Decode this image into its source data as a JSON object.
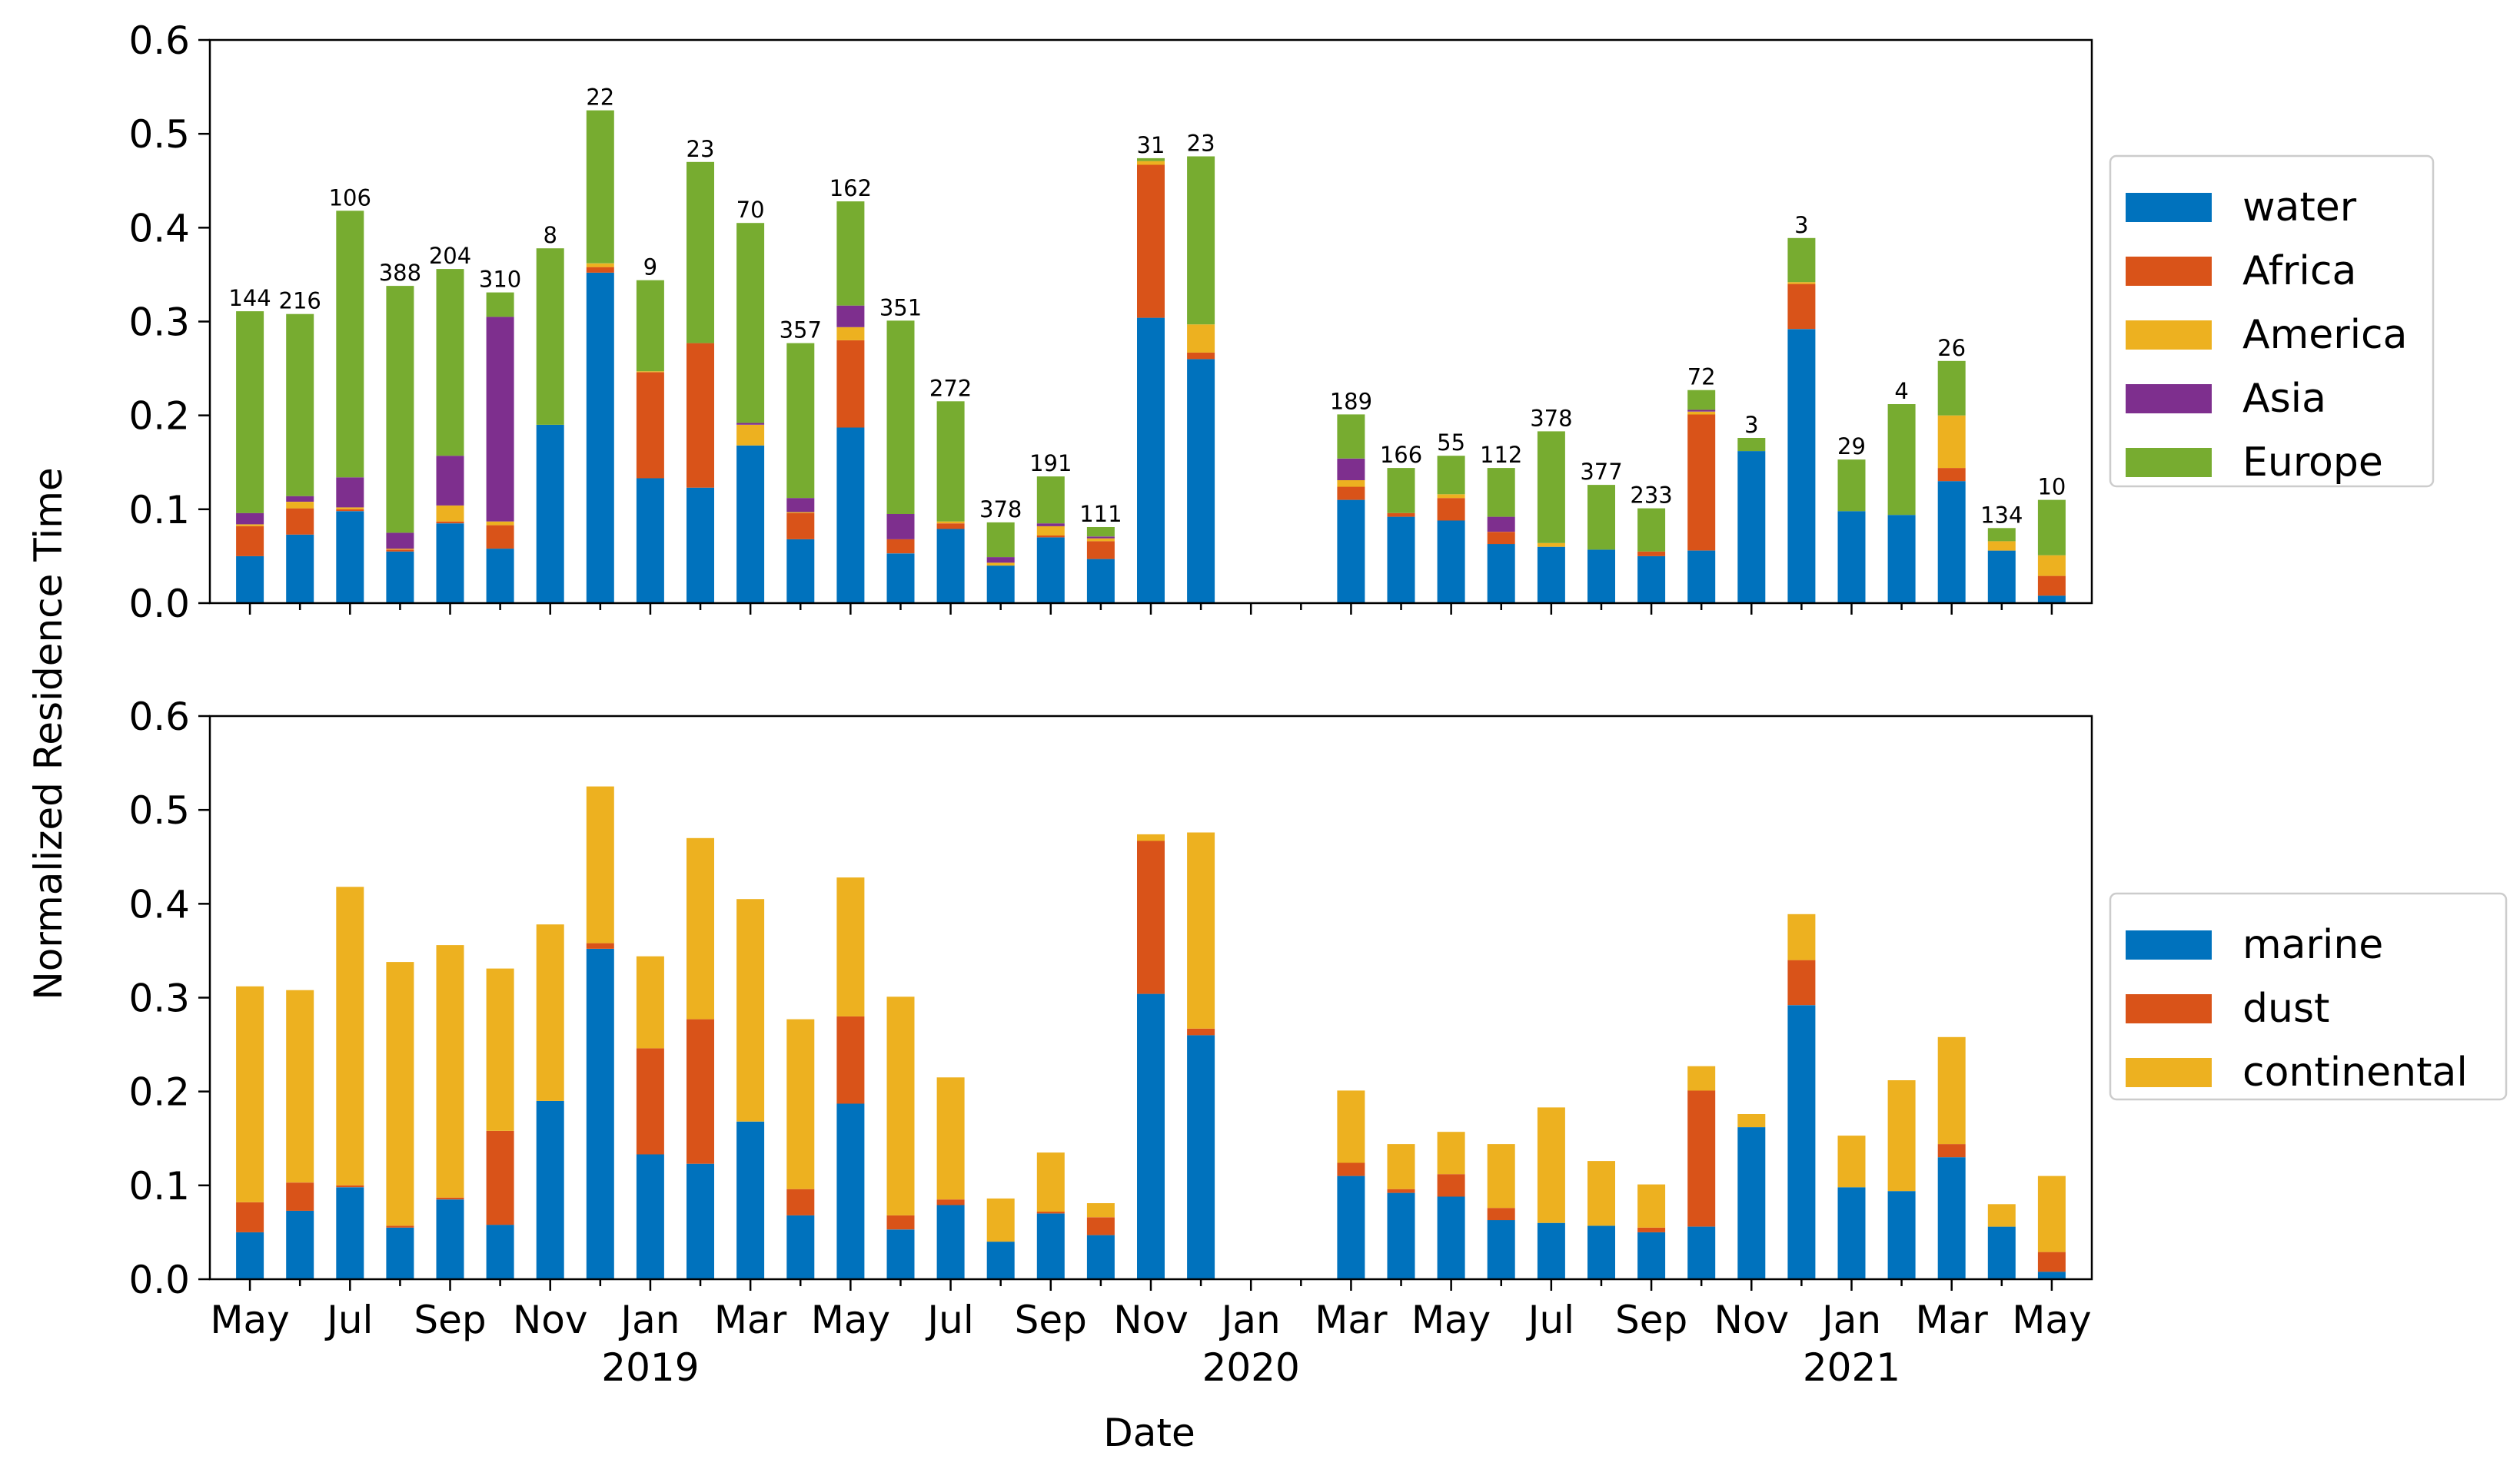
{
  "colors": {
    "water": "#0072BD",
    "Africa": "#D95319",
    "America": "#EDB120",
    "Asia": "#7E2F8E",
    "Europe": "#77AC30",
    "marine": "#0072BD",
    "dust": "#D95319",
    "continental": "#EDB120"
  },
  "chart_data": [
    {
      "type": "bar",
      "stacked": true,
      "title": "",
      "ylabel": "Normalized Residence Time",
      "ylim": [
        0,
        0.6
      ],
      "yticks": [
        "0.0",
        "0.1",
        "0.2",
        "0.3",
        "0.4",
        "0.5",
        "0.6"
      ],
      "legend_position": "right",
      "categories": [
        "2018-05",
        "2018-06",
        "2018-07",
        "2018-08",
        "2018-09",
        "2018-10",
        "2018-11",
        "2018-12",
        "2019-01",
        "2019-02",
        "2019-03",
        "2019-04",
        "2019-05",
        "2019-06",
        "2019-07",
        "2019-08",
        "2019-09",
        "2019-10",
        "2019-11",
        "2019-12",
        "2020-01",
        "2020-02",
        "2020-03",
        "2020-04",
        "2020-05",
        "2020-06",
        "2020-07",
        "2020-08",
        "2020-09",
        "2020-10",
        "2020-11",
        "2020-12",
        "2021-01",
        "2021-02",
        "2021-03",
        "2021-04",
        "2021-05"
      ],
      "counts": [
        "144",
        "216",
        "106",
        "388",
        "204",
        "310",
        "8",
        "22",
        "9",
        "23",
        "70",
        "357",
        "162",
        "351",
        "272",
        "378",
        "191",
        "111",
        "31",
        "23",
        "",
        "",
        "189",
        "166",
        "55",
        "112",
        "378",
        "377",
        "233",
        "72",
        "3",
        "3",
        "29",
        "4",
        "26",
        "134",
        "10"
      ],
      "series": [
        {
          "name": "water",
          "values": [
            0.05,
            0.073,
            0.098,
            0.055,
            0.085,
            0.058,
            0.19,
            0.352,
            0.133,
            0.123,
            0.168,
            0.068,
            0.187,
            0.053,
            0.079,
            0.04,
            0.07,
            0.047,
            0.304,
            0.26,
            0,
            0,
            0.11,
            0.092,
            0.088,
            0.063,
            0.06,
            0.057,
            0.05,
            0.056,
            0.162,
            0.292,
            0.098,
            0.094,
            0.13,
            0.056,
            0.008
          ]
        },
        {
          "name": "Africa",
          "values": [
            0.032,
            0.028,
            0.002,
            0.002,
            0.002,
            0.025,
            0,
            0.006,
            0.113,
            0.154,
            0,
            0.028,
            0.093,
            0.015,
            0.006,
            0,
            0.002,
            0.019,
            0.163,
            0.007,
            0,
            0,
            0.014,
            0.004,
            0.024,
            0.013,
            0,
            0,
            0.005,
            0.145,
            0,
            0.048,
            0,
            0,
            0.014,
            0,
            0.021
          ]
        },
        {
          "name": "America",
          "values": [
            0.002,
            0.007,
            0.002,
            0.001,
            0.017,
            0.004,
            0,
            0.004,
            0.001,
            0,
            0.022,
            0.001,
            0.014,
            0,
            0.002,
            0.003,
            0.01,
            0.003,
            0.004,
            0.03,
            0,
            0,
            0.007,
            0,
            0.004,
            0,
            0.004,
            0,
            0,
            0.003,
            0,
            0.002,
            0,
            0,
            0.056,
            0.01,
            0.022
          ]
        },
        {
          "name": "Asia",
          "values": [
            0.012,
            0.006,
            0.032,
            0.017,
            0.053,
            0.218,
            0,
            0,
            0,
            0,
            0.002,
            0.015,
            0.023,
            0.027,
            0,
            0.006,
            0.003,
            0.002,
            0,
            0,
            0,
            0,
            0.023,
            0,
            0,
            0.016,
            0,
            0,
            0,
            0.002,
            0,
            0,
            0,
            0,
            0,
            0,
            0
          ]
        },
        {
          "name": "Europe",
          "values": [
            0.215,
            0.194,
            0.284,
            0.263,
            0.199,
            0.026,
            0.188,
            0.163,
            0.097,
            0.193,
            0.213,
            0.165,
            0.111,
            0.206,
            0.128,
            0.037,
            0.05,
            0.01,
            0.003,
            0.179,
            0,
            0,
            0.047,
            0.048,
            0.041,
            0.052,
            0.119,
            0.069,
            0.046,
            0.021,
            0.014,
            0.047,
            0.055,
            0.118,
            0.058,
            0.014,
            0.059
          ]
        }
      ]
    },
    {
      "type": "bar",
      "stacked": true,
      "title": "",
      "ylabel": "Normalized Residence Time",
      "xlabel": "Date",
      "ylim": [
        0,
        0.6
      ],
      "yticks": [
        "0.0",
        "0.1",
        "0.2",
        "0.3",
        "0.4",
        "0.5",
        "0.6"
      ],
      "legend_position": "right",
      "x_ticks": [
        "May",
        "Jul",
        "Sep",
        "Nov",
        "Jan",
        "Mar",
        "May",
        "Jul",
        "Sep",
        "Nov",
        "Jan",
        "Mar",
        "May",
        "Jul",
        "Sep",
        "Nov",
        "Jan",
        "Mar",
        "May"
      ],
      "year_labels": [
        "2019",
        "2020",
        "2021"
      ],
      "categories": [
        "2018-05",
        "2018-06",
        "2018-07",
        "2018-08",
        "2018-09",
        "2018-10",
        "2018-11",
        "2018-12",
        "2019-01",
        "2019-02",
        "2019-03",
        "2019-04",
        "2019-05",
        "2019-06",
        "2019-07",
        "2019-08",
        "2019-09",
        "2019-10",
        "2019-11",
        "2019-12",
        "2020-01",
        "2020-02",
        "2020-03",
        "2020-04",
        "2020-05",
        "2020-06",
        "2020-07",
        "2020-08",
        "2020-09",
        "2020-10",
        "2020-11",
        "2020-12",
        "2021-01",
        "2021-02",
        "2021-03",
        "2021-04",
        "2021-05"
      ],
      "series": [
        {
          "name": "marine",
          "values": [
            0.05,
            0.073,
            0.098,
            0.055,
            0.085,
            0.058,
            0.19,
            0.352,
            0.133,
            0.123,
            0.168,
            0.068,
            0.187,
            0.053,
            0.079,
            0.04,
            0.07,
            0.047,
            0.304,
            0.26,
            0,
            0,
            0.11,
            0.092,
            0.088,
            0.063,
            0.06,
            0.057,
            0.05,
            0.056,
            0.162,
            0.292,
            0.098,
            0.094,
            0.13,
            0.056,
            0.008
          ]
        },
        {
          "name": "dust",
          "values": [
            0.032,
            0.03,
            0.002,
            0.002,
            0.002,
            0.1,
            0,
            0.006,
            0.113,
            0.154,
            0,
            0.028,
            0.093,
            0.015,
            0.006,
            0,
            0.002,
            0.019,
            0.163,
            0.007,
            0,
            0,
            0.014,
            0.004,
            0.024,
            0.013,
            0,
            0,
            0.005,
            0.145,
            0,
            0.048,
            0,
            0,
            0.014,
            0,
            0.021
          ]
        },
        {
          "name": "continental",
          "values": [
            0.23,
            0.205,
            0.318,
            0.281,
            0.269,
            0.173,
            0.188,
            0.167,
            0.098,
            0.193,
            0.237,
            0.181,
            0.148,
            0.233,
            0.13,
            0.046,
            0.063,
            0.015,
            0.007,
            0.209,
            0,
            0,
            0.077,
            0.048,
            0.045,
            0.068,
            0.123,
            0.069,
            0.046,
            0.026,
            0.014,
            0.049,
            0.055,
            0.118,
            0.114,
            0.024,
            0.081
          ]
        }
      ]
    }
  ]
}
